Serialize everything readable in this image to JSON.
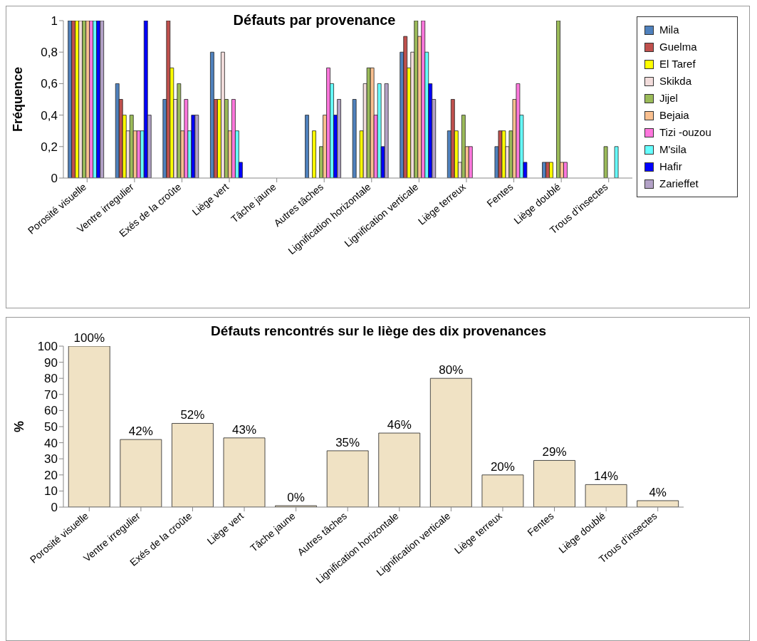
{
  "chart_data": [
    {
      "type": "bar",
      "title": "Défauts par provenance",
      "ylabel": "Fréquence",
      "categories": [
        "Porosité visuelle",
        "Ventre   irregulier",
        "Exés de la croûte",
        "Liège vert",
        "Tâche jaune",
        "Autres tâches",
        "Lignification horizontale",
        "Lignification verticale",
        "Liège terreux",
        "Fentes",
        "Liège doublé",
        "Trous d’insectes"
      ],
      "series": [
        {
          "name": "Mila",
          "color": "#4f81bd",
          "values": [
            1,
            0.6,
            0.5,
            0.8,
            0,
            0.4,
            0.5,
            0.8,
            0.3,
            0.2,
            0.1,
            0
          ]
        },
        {
          "name": "Guelma",
          "color": "#c0504d",
          "values": [
            1,
            0.5,
            1,
            0.5,
            0,
            0,
            0,
            0.9,
            0.5,
            0.3,
            0.1,
            0
          ]
        },
        {
          "name": "El Taref",
          "color": "#ffff00",
          "values": [
            1,
            0.4,
            0.7,
            0.5,
            0,
            0.3,
            0.3,
            0.7,
            0.3,
            0.3,
            0.1,
            0
          ]
        },
        {
          "name": "Skikda",
          "color": "#f2dcdb",
          "values": [
            1,
            0.3,
            0.5,
            0.8,
            0,
            0,
            0.6,
            0.8,
            0.1,
            0.2,
            0,
            0
          ]
        },
        {
          "name": "Jijel",
          "color": "#9bbb59",
          "values": [
            1,
            0.4,
            0.6,
            0.5,
            0,
            0.2,
            0.7,
            1,
            0.4,
            0.3,
            1,
            0.2
          ]
        },
        {
          "name": "Bejaia",
          "color": "#fac090",
          "values": [
            1,
            0.3,
            0.3,
            0.3,
            0,
            0.4,
            0.7,
            0.9,
            0.2,
            0.5,
            0.1,
            0
          ]
        },
        {
          "name": "Tizi -ouzou",
          "color": "#ff77dd",
          "values": [
            1,
            0.3,
            0.5,
            0.5,
            0,
            0.7,
            0.4,
            1,
            0.2,
            0.6,
            0.1,
            0
          ]
        },
        {
          "name": "M'sila",
          "color": "#66ffff",
          "values": [
            1,
            0.3,
            0.3,
            0.3,
            0,
            0.6,
            0.6,
            0.8,
            0,
            0.4,
            0,
            0.2
          ]
        },
        {
          "name": "Hafir",
          "color": "#0000ff",
          "values": [
            1,
            1,
            0.4,
            0.1,
            0,
            0.4,
            0.2,
            0.6,
            0,
            0.1,
            0,
            0
          ]
        },
        {
          "name": "Zarieffet",
          "color": "#b3a2c7",
          "values": [
            1,
            0.4,
            0.4,
            0,
            0,
            0.5,
            0.6,
            0.5,
            0,
            0,
            0,
            0
          ]
        }
      ],
      "ylim": [
        0,
        1
      ],
      "yticks": [
        0,
        {
          "value": 0.2,
          "label": "0,2"
        },
        {
          "value": 0.4,
          "label": "0,4"
        },
        {
          "value": 0.6,
          "label": "0,6"
        },
        {
          "value": 0.8,
          "label": "0,8"
        },
        1
      ],
      "grid": false,
      "legend": "right"
    },
    {
      "type": "bar",
      "title": "Défauts rencontrés sur le liège des dix provenances",
      "ylabel": "%",
      "categories": [
        "Porosité visuelle",
        "Ventre   irregulier",
        "Exés de la croûte",
        "Liège vert",
        "Tâche jaune",
        "Autres tâches",
        "Lignification horizontale",
        "Lignification verticale",
        "Liège terreux",
        "Fentes",
        "Liège doublé",
        "Trous d’insectes"
      ],
      "values": [
        100,
        42,
        52,
        43,
        0,
        35,
        46,
        80,
        20,
        29,
        14,
        4
      ],
      "color": "#f0e2c4",
      "value_labels": [
        "100%",
        "42%",
        "52%",
        "43%",
        "0%",
        "35%",
        "46%",
        "80%",
        "20%",
        "29%",
        "14%",
        "4%"
      ],
      "ylim": [
        0,
        100
      ],
      "yticks": [
        0,
        10,
        20,
        30,
        40,
        50,
        60,
        70,
        80,
        90,
        100
      ],
      "grid": false,
      "legend": false
    }
  ]
}
